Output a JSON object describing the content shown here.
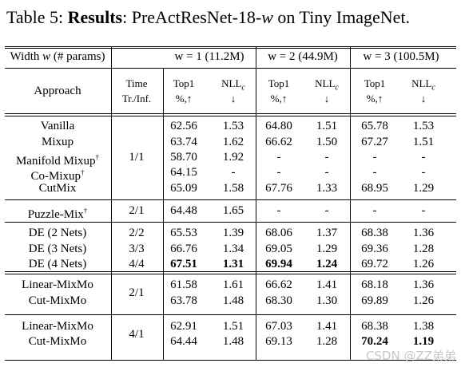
{
  "caption": {
    "prefix": "Table 5: ",
    "bold": "Results",
    "mid": ": PreActResNet-18-",
    "var": "w",
    "suffix": " on Tiny ImageNet."
  },
  "header": {
    "width_label": "Width ",
    "width_var": "w",
    "width_suffix": " (# params)",
    "groups": [
      "w = 1 (11.2M)",
      "w = 2 (44.9M)",
      "w = 3 (100.5M)"
    ],
    "approach": "Approach",
    "time_line1": "Time",
    "time_line2": "Tr./Inf.",
    "top1": "Top1",
    "top1_sub": "%,↑",
    "nll": "NLL",
    "nll_sub": "c",
    "nll_arrow": "↓"
  },
  "rows": [
    {
      "approach": "Vanilla",
      "sup": "",
      "time": "",
      "vals": [
        "62.56",
        "1.53",
        "64.80",
        "1.51",
        "65.78",
        "1.53"
      ],
      "bold": []
    },
    {
      "approach": "Mixup",
      "sup": "",
      "time": "",
      "vals": [
        "63.74",
        "1.62",
        "66.62",
        "1.50",
        "67.27",
        "1.51"
      ],
      "bold": []
    },
    {
      "approach": "Manifold Mixup",
      "sup": "†",
      "time": "1/1",
      "vals": [
        "58.70",
        "1.92",
        "-",
        "-",
        "-",
        "-"
      ],
      "bold": []
    },
    {
      "approach": "Co-Mixup",
      "sup": "†",
      "time": "",
      "vals": [
        "64.15",
        "-",
        "-",
        "-",
        "-",
        "-"
      ],
      "bold": []
    },
    {
      "approach": "CutMix",
      "sup": "",
      "time": "",
      "vals": [
        "65.09",
        "1.58",
        "67.76",
        "1.33",
        "68.95",
        "1.29"
      ],
      "bold": []
    },
    {
      "approach": "Puzzle-Mix",
      "sup": "†",
      "time": "2/1",
      "vals": [
        "64.48",
        "1.65",
        "-",
        "-",
        "-",
        "-"
      ],
      "bold": []
    },
    {
      "approach": "DE (2 Nets)",
      "sup": "",
      "time": "2/2",
      "vals": [
        "65.53",
        "1.39",
        "68.06",
        "1.37",
        "68.38",
        "1.36"
      ],
      "bold": []
    },
    {
      "approach": "DE (3 Nets)",
      "sup": "",
      "time": "3/3",
      "vals": [
        "66.76",
        "1.34",
        "69.05",
        "1.29",
        "69.36",
        "1.28"
      ],
      "bold": []
    },
    {
      "approach": "DE (4 Nets)",
      "sup": "",
      "time": "4/4",
      "vals": [
        "67.51",
        "1.31",
        "69.94",
        "1.24",
        "69.72",
        "1.26"
      ],
      "bold": [
        0,
        1,
        2,
        3
      ]
    },
    {
      "approach": "Linear-MixMo",
      "sup": "",
      "time": "",
      "vals": [
        "61.58",
        "1.61",
        "66.62",
        "1.41",
        "68.18",
        "1.36"
      ],
      "bold": []
    },
    {
      "approach": "Cut-MixMo",
      "sup": "",
      "time": "2/1",
      "vals": [
        "63.78",
        "1.48",
        "68.30",
        "1.30",
        "69.89",
        "1.26"
      ],
      "bold": []
    },
    {
      "approach": "Linear-MixMo",
      "sup": "",
      "time": "",
      "vals": [
        "62.91",
        "1.51",
        "67.03",
        "1.41",
        "68.38",
        "1.38"
      ],
      "bold": []
    },
    {
      "approach": "Cut-MixMo",
      "sup": "",
      "time": "4/1",
      "vals": [
        "64.44",
        "1.48",
        "69.13",
        "1.28",
        "70.24",
        "1.19"
      ],
      "bold": [
        4,
        5
      ]
    }
  ],
  "watermark": "CSDN @ZZ弟弟"
}
